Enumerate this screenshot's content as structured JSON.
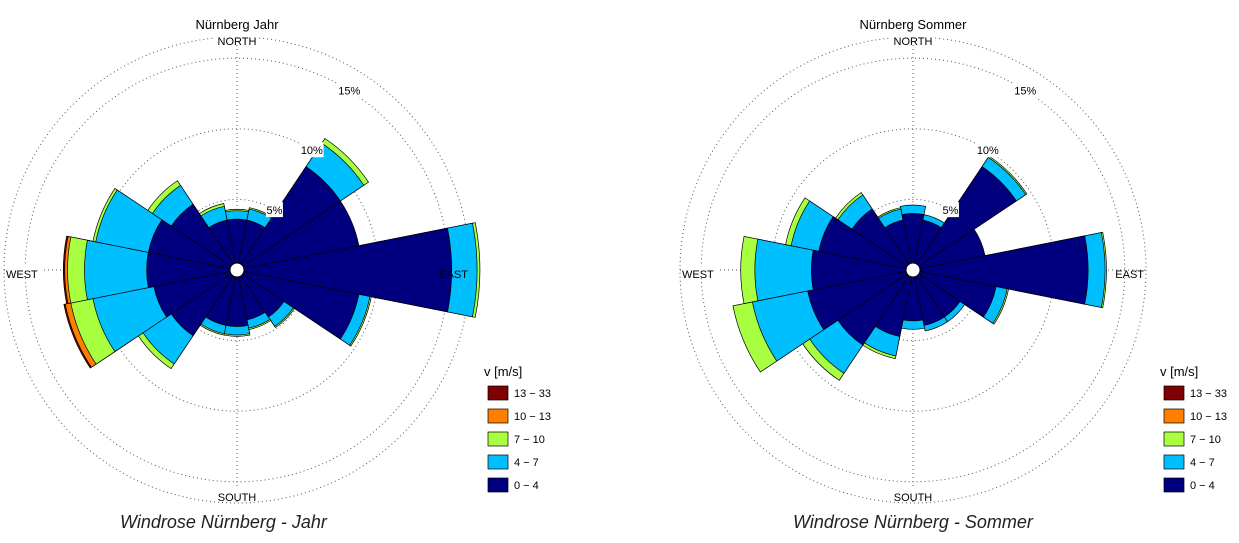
{
  "chart_data": [
    {
      "type": "windrose",
      "title": "Nürnberg Jahr",
      "caption": "Windrose Nürnberg - Jahr",
      "directions_deg": [
        0,
        22.5,
        45,
        67.5,
        90,
        112.5,
        135,
        157.5,
        180,
        202.5,
        225,
        247.5,
        270,
        292.5,
        315,
        337.5
      ],
      "radial_ticks": [
        5,
        10,
        15
      ],
      "radial_tick_labels": [
        "5%",
        "10%",
        "15%"
      ],
      "rmax_percent": 16.5,
      "cardinal_labels": {
        "north": "NORTH",
        "east": "EAST",
        "south": "SOUTH",
        "west": "WEST"
      },
      "legend_title": "v [m/s]",
      "series": [
        {
          "name": "0 - 4",
          "label": "0 − 4",
          "color": "#00007f",
          "values": [
            3.6,
            3.6,
            8.8,
            8.8,
            15.2,
            8.8,
            4.0,
            3.6,
            4.0,
            4.0,
            5.6,
            6.0,
            6.4,
            6.4,
            5.6,
            3.6
          ]
        },
        {
          "name": "4 - 7",
          "label": "4 − 7",
          "color": "#00bfff",
          "values": [
            0.6,
            0.8,
            2.0,
            0.0,
            1.8,
            0.8,
            0.8,
            0.6,
            0.6,
            0.6,
            2.4,
            4.4,
            4.4,
            3.8,
            1.6,
            1.0
          ]
        },
        {
          "name": "7 - 10",
          "label": "7 − 10",
          "color": "#a8ff40",
          "values": [
            0.1,
            0.1,
            0.4,
            0.0,
            0.2,
            0.1,
            0.1,
            0.1,
            0.1,
            0.1,
            0.4,
            1.6,
            1.2,
            0.2,
            0.4,
            0.2
          ]
        },
        {
          "name": "10 - 13",
          "label": "10 − 13",
          "color": "#ff7f00",
          "values": [
            0.0,
            0.0,
            0.0,
            0.0,
            0.0,
            0.0,
            0.0,
            0.0,
            0.0,
            0.0,
            0.0,
            0.4,
            0.2,
            0.0,
            0.0,
            0.0
          ]
        },
        {
          "name": "13 - 33",
          "label": "13 − 33",
          "color": "#7f0000",
          "values": [
            0.0,
            0.0,
            0.0,
            0.0,
            0.0,
            0.0,
            0.0,
            0.0,
            0.0,
            0.0,
            0.0,
            0.1,
            0.1,
            0.0,
            0.0,
            0.0
          ]
        }
      ]
    },
    {
      "type": "windrose",
      "title": "Nürnberg Sommer",
      "caption": "Windrose Nürnberg - Sommer",
      "directions_deg": [
        0,
        22.5,
        45,
        67.5,
        90,
        112.5,
        135,
        157.5,
        180,
        202.5,
        225,
        247.5,
        270,
        292.5,
        315,
        337.5
      ],
      "radial_ticks": [
        5,
        10,
        15
      ],
      "radial_tick_labels": [
        "5%",
        "10%",
        "15%"
      ],
      "rmax_percent": 16.5,
      "cardinal_labels": {
        "north": "NORTH",
        "east": "EAST",
        "south": "SOUTH",
        "west": "WEST"
      },
      "legend_title": "v [m/s]",
      "series": [
        {
          "name": "0 - 4",
          "label": "0 − 4",
          "color": "#00007f",
          "values": [
            4.0,
            3.6,
            8.8,
            5.2,
            12.4,
            6.0,
            4.0,
            4.0,
            3.6,
            4.8,
            6.4,
            7.6,
            7.2,
            6.8,
            5.2,
            3.6
          ]
        },
        {
          "name": "4 - 7",
          "label": "4 − 7",
          "color": "#00bfff",
          "values": [
            0.6,
            0.4,
            0.8,
            0.0,
            1.2,
            0.8,
            0.4,
            0.4,
            0.6,
            1.4,
            2.4,
            4.0,
            4.0,
            2.0,
            1.2,
            0.8
          ]
        },
        {
          "name": "7 - 10",
          "label": "7 − 10",
          "color": "#a8ff40",
          "values": [
            0.0,
            0.0,
            0.1,
            0.0,
            0.1,
            0.1,
            0.0,
            0.0,
            0.0,
            0.2,
            0.6,
            1.4,
            1.0,
            0.4,
            0.2,
            0.1
          ]
        },
        {
          "name": "10 - 13",
          "label": "10 − 13",
          "color": "#ff7f00",
          "values": [
            0.0,
            0.0,
            0.0,
            0.0,
            0.0,
            0.0,
            0.0,
            0.0,
            0.0,
            0.0,
            0.0,
            0.0,
            0.0,
            0.0,
            0.0,
            0.0
          ]
        },
        {
          "name": "13 - 33",
          "label": "13 − 33",
          "color": "#7f0000",
          "values": [
            0.0,
            0.0,
            0.0,
            0.0,
            0.0,
            0.0,
            0.0,
            0.0,
            0.0,
            0.0,
            0.0,
            0.0,
            0.0,
            0.0,
            0.0,
            0.0
          ]
        }
      ]
    }
  ]
}
